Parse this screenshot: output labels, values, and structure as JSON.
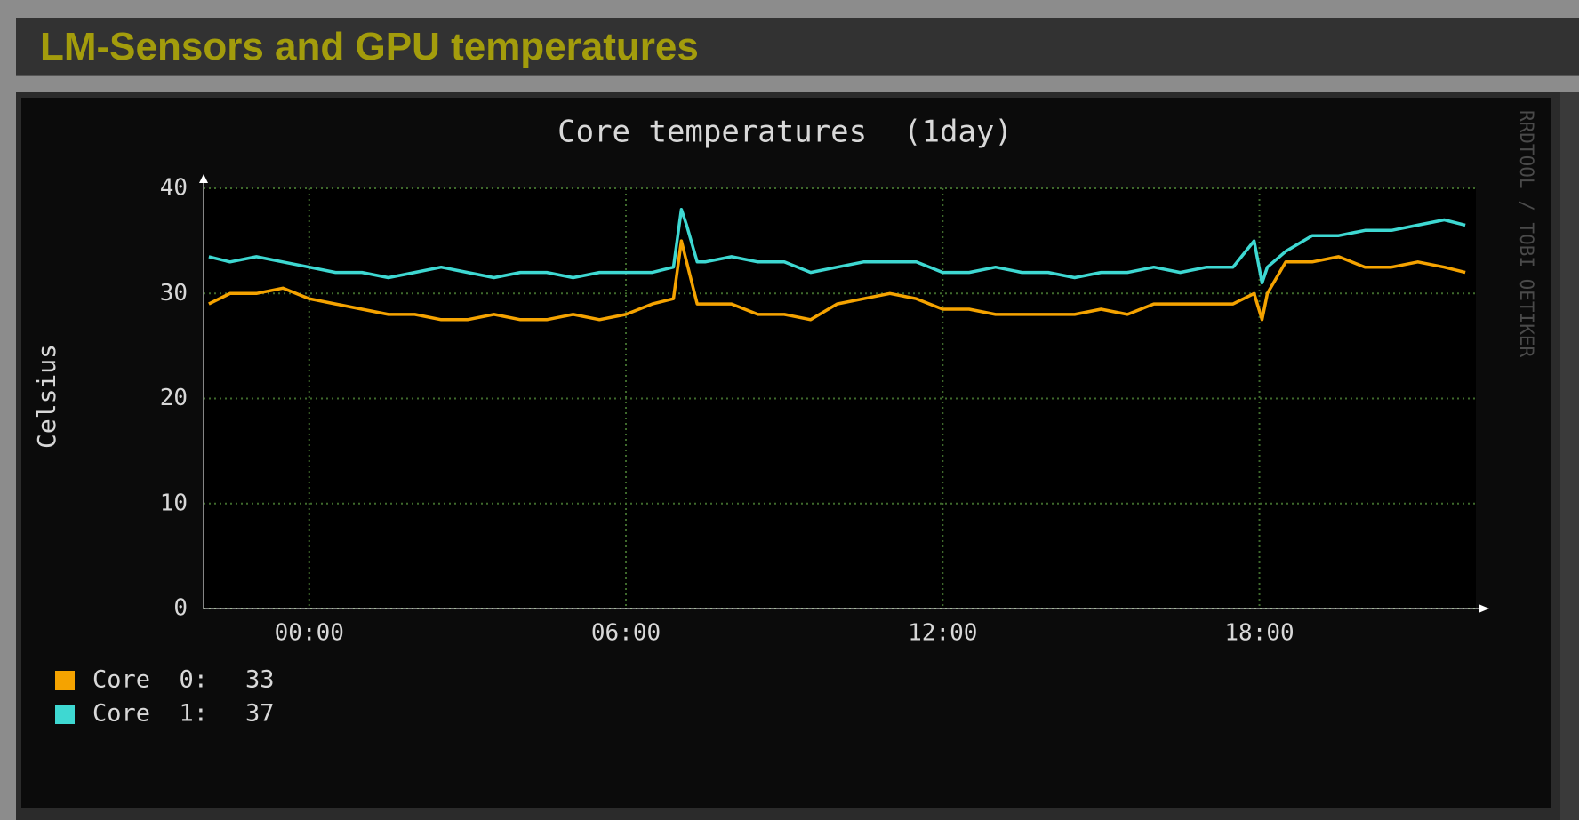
{
  "header": {
    "title": "LM-Sensors and GPU temperatures"
  },
  "watermark": "RRDTOOL / TOBI OETIKER",
  "chart_data": {
    "type": "line",
    "title": "Core temperatures  (1day)",
    "y_label": "Celsius",
    "x": [
      -1.9,
      -1.5,
      -1,
      -0.5,
      0,
      0.5,
      1,
      1.5,
      2,
      2.5,
      3,
      3.5,
      4,
      4.5,
      5,
      5.5,
      6,
      6.5,
      6.9,
      7.05,
      7.15,
      7.35,
      7.5,
      8,
      8.5,
      9,
      9.5,
      10,
      10.5,
      11,
      11.5,
      12,
      12.5,
      13,
      13.5,
      14,
      14.5,
      15,
      15.5,
      16,
      16.5,
      17,
      17.5,
      17.9,
      18.05,
      18.15,
      18.5,
      19,
      19.5,
      20,
      20.5,
      21,
      21.5,
      21.9
    ],
    "series": [
      {
        "name": "Core  0:",
        "current": 33,
        "color": "#f5a300",
        "values": [
          29,
          30,
          30,
          30.5,
          29.5,
          29,
          28.5,
          28,
          28,
          27.5,
          27.5,
          28,
          27.5,
          27.5,
          28,
          27.5,
          28,
          29,
          29.5,
          35,
          33,
          29,
          29,
          29,
          28,
          28,
          27.5,
          29,
          29.5,
          30,
          29.5,
          28.5,
          28.5,
          28,
          28,
          28,
          28,
          28.5,
          28,
          29,
          29,
          29,
          29,
          30,
          27.5,
          30,
          33,
          33,
          33.5,
          32.5,
          32.5,
          33,
          32.5,
          32
        ]
      },
      {
        "name": "Core  1:",
        "current": 37,
        "color": "#3ed8d2",
        "values": [
          33.5,
          33,
          33.5,
          33,
          32.5,
          32,
          32,
          31.5,
          32,
          32.5,
          32,
          31.5,
          32,
          32,
          31.5,
          32,
          32,
          32,
          32.5,
          38,
          36.5,
          33,
          33,
          33.5,
          33,
          33,
          32,
          32.5,
          33,
          33,
          33,
          32,
          32,
          32.5,
          32,
          32,
          31.5,
          32,
          32,
          32.5,
          32,
          32.5,
          32.5,
          35,
          31,
          32.5,
          34,
          35.5,
          35.5,
          36,
          36,
          36.5,
          37,
          36.5
        ]
      }
    ],
    "xlim": [
      -2,
      22.1
    ],
    "xticks": [
      {
        "value": 0,
        "label": "00:00"
      },
      {
        "value": 6,
        "label": "06:00"
      },
      {
        "value": 12,
        "label": "12:00"
      },
      {
        "value": 18,
        "label": "18:00"
      }
    ],
    "ylim": [
      0,
      40
    ],
    "yticks": [
      0,
      10,
      20,
      30,
      40
    ],
    "grid": true
  }
}
